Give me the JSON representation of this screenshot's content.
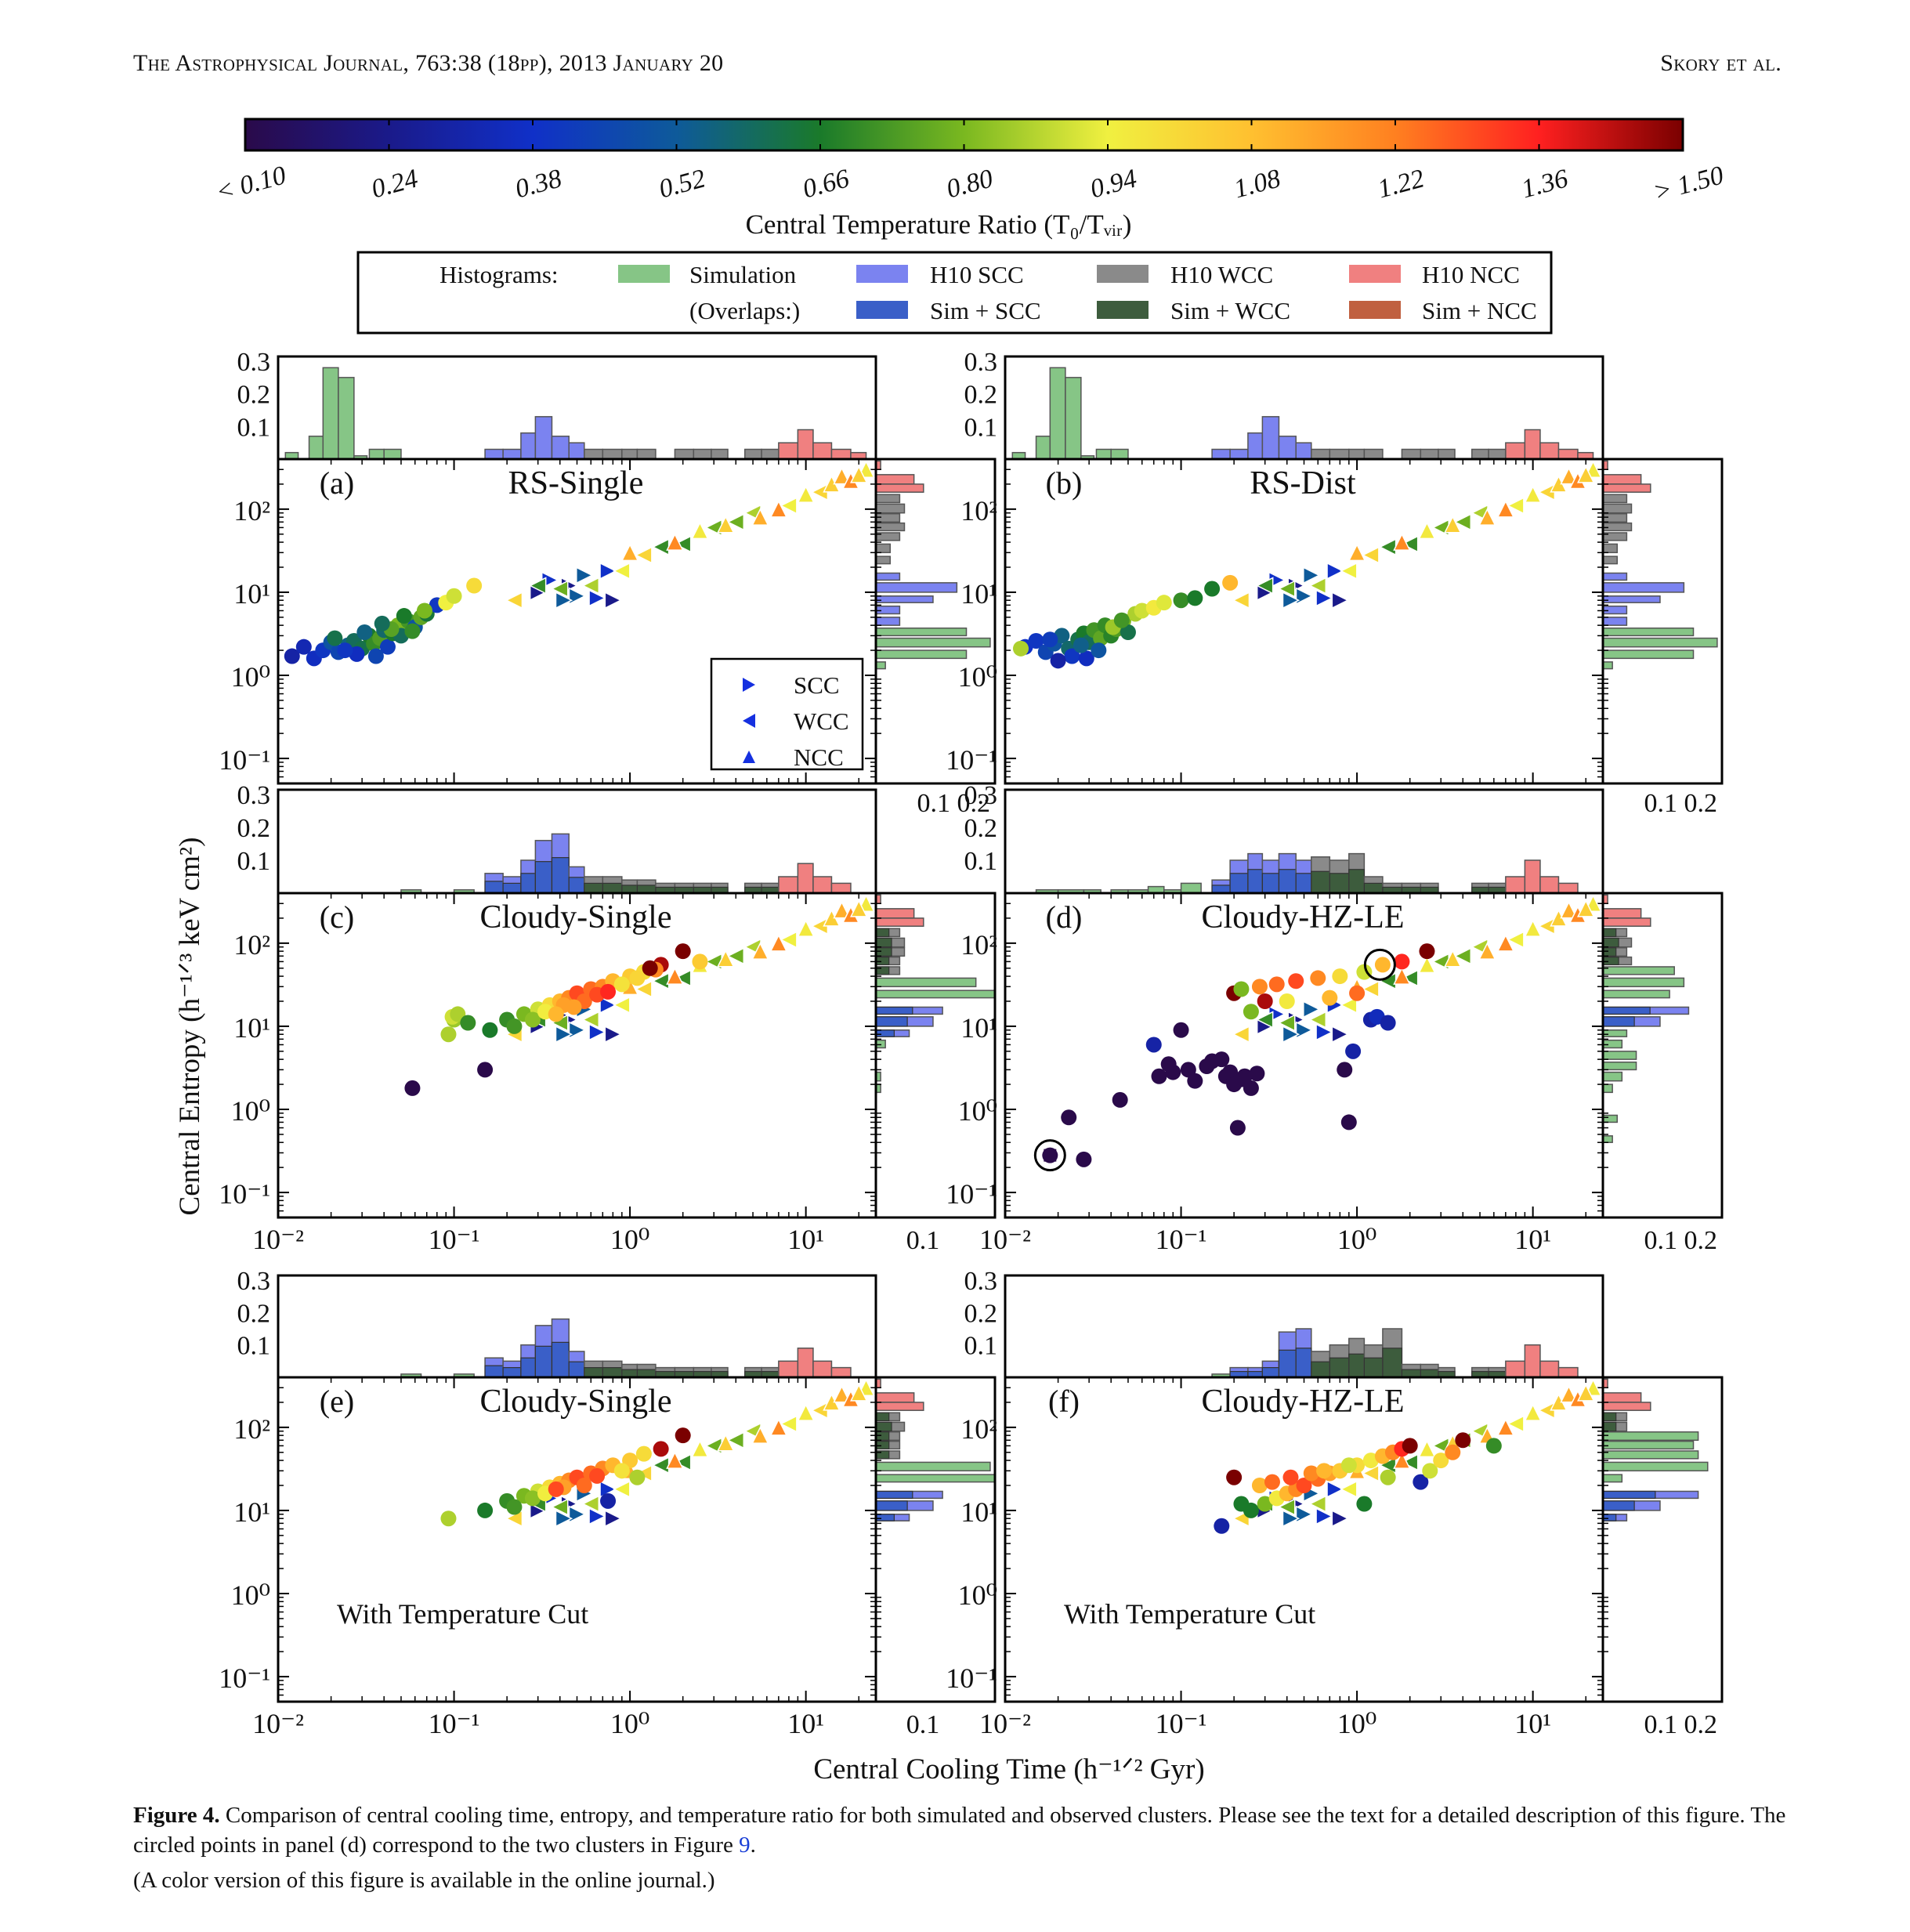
{
  "header": {
    "journal": "The Astrophysical Journal, 763:38 (18pp), 2013 January 20",
    "authors": "Skory et al."
  },
  "colorbar": {
    "ticks": [
      "< 0.10",
      "0.24",
      "0.38",
      "0.52",
      "0.66",
      "0.80",
      "0.94",
      "1.08",
      "1.22",
      "1.36",
      "> 1.50"
    ],
    "label": "Central Temperature Ratio (T₀/Tᵥᵢᵣ)",
    "range": [
      0.1,
      1.5
    ],
    "colormap": [
      "#2a0a4a",
      "#1a1a8a",
      "#1030c8",
      "#0e5a9a",
      "#1a7a2a",
      "#7ab820",
      "#f0f040",
      "#ffc030",
      "#ff8020",
      "#ff2020",
      "#7a0000"
    ]
  },
  "legend": {
    "title": "Histograms:",
    "overlaps_label": "(Overlaps:)",
    "items": [
      {
        "label": "Simulation",
        "color": "#86c586"
      },
      {
        "label": "H10 SCC",
        "color": "#7b83f0"
      },
      {
        "label": "H10 WCC",
        "color": "#8a8a8a"
      },
      {
        "label": "H10 NCC",
        "color": "#f08080"
      },
      {
        "label": "Sim + SCC",
        "color": "#3a5fc8"
      },
      {
        "label": "Sim + WCC",
        "color": "#3d5c3d"
      },
      {
        "label": "Sim + NCC",
        "color": "#c06040"
      }
    ]
  },
  "marker_legend": [
    "SCC",
    "WCC",
    "NCC"
  ],
  "panels": [
    {
      "id": "a",
      "label": "(a)",
      "title": "RS-Single",
      "note": ""
    },
    {
      "id": "b",
      "label": "(b)",
      "title": "RS-Dist",
      "note": ""
    },
    {
      "id": "c",
      "label": "(c)",
      "title": "Cloudy-Single",
      "note": ""
    },
    {
      "id": "d",
      "label": "(d)",
      "title": "Cloudy-HZ-LE",
      "note": ""
    },
    {
      "id": "e",
      "label": "(e)",
      "title": "Cloudy-Single",
      "note": "With Temperature Cut"
    },
    {
      "id": "f",
      "label": "(f)",
      "title": "Cloudy-HZ-LE",
      "note": "With Temperature Cut"
    }
  ],
  "axes": {
    "xlabel": "Central Cooling Time (h⁻¹ᐟ² Gyr)",
    "ylabel": "Central Entropy (h⁻¹ᐟ³ keV cm²)",
    "x_scale": "log",
    "y_scale": "log",
    "xlim": [
      0.01,
      25
    ],
    "ylim": [
      0.05,
      400
    ],
    "x_ticks": [
      "10⁻²",
      "10⁻¹",
      "10⁰",
      "10¹"
    ],
    "y_ticks": [
      "10⁻¹",
      "10⁰",
      "10¹",
      "10²"
    ],
    "top_hist_ticks": [
      "0.3",
      "0.2",
      "0.1"
    ],
    "right_hist_ticks": [
      "0.1",
      "0.2"
    ]
  },
  "chart_data": [
    {
      "type": "scatter",
      "title": "RS-Single",
      "x_scale": "log",
      "y_scale": "log",
      "series": [
        {
          "name": "Simulation",
          "x": [
            0.012,
            0.014,
            0.016,
            0.018,
            0.02,
            0.022,
            0.025,
            0.027,
            0.03,
            0.033,
            0.035,
            0.038,
            0.04,
            0.042,
            0.045,
            0.048,
            0.05,
            0.055,
            0.06,
            0.065,
            0.07,
            0.08,
            0.09,
            0.1,
            0.13,
            0.021,
            0.028,
            0.036,
            0.044,
            0.052,
            0.031,
            0.024,
            0.039,
            0.058,
            0.068
          ],
          "y": [
            1.7,
            2.2,
            1.6,
            2.0,
            2.5,
            1.9,
            2.3,
            2.6,
            2.1,
            3.0,
            2.4,
            2.8,
            3.5,
            2.2,
            3.2,
            4.0,
            3.0,
            4.5,
            3.8,
            5.0,
            5.5,
            7.0,
            7.5,
            9.0,
            12.0,
            2.8,
            1.8,
            1.7,
            3.6,
            5.2,
            3.3,
            2.0,
            4.2,
            3.4,
            6.0
          ],
          "t_ratio": [
            0.3,
            0.33,
            0.36,
            0.4,
            0.5,
            0.45,
            0.55,
            0.6,
            0.62,
            0.66,
            0.7,
            0.74,
            0.58,
            0.42,
            0.66,
            0.8,
            0.6,
            0.72,
            0.5,
            0.76,
            0.64,
            0.4,
            0.94,
            0.9,
            1.0,
            0.62,
            0.36,
            0.45,
            0.75,
            0.66,
            0.55,
            0.4,
            0.6,
            0.7,
            0.8
          ]
        }
      ]
    },
    {
      "type": "scatter",
      "title": "RS-Dist",
      "x_scale": "log",
      "y_scale": "log",
      "series": [
        {
          "name": "Simulation",
          "x": [
            0.013,
            0.015,
            0.017,
            0.019,
            0.021,
            0.023,
            0.026,
            0.028,
            0.03,
            0.032,
            0.035,
            0.037,
            0.04,
            0.043,
            0.047,
            0.05,
            0.055,
            0.06,
            0.07,
            0.08,
            0.1,
            0.12,
            0.15,
            0.19,
            0.024,
            0.029,
            0.034,
            0.041,
            0.046,
            0.02,
            0.018,
            0.027
          ],
          "y": [
            2.2,
            2.6,
            1.9,
            2.4,
            3.0,
            2.1,
            2.7,
            3.2,
            2.5,
            3.5,
            2.8,
            4.0,
            3.0,
            3.6,
            4.5,
            3.3,
            5.5,
            6.0,
            6.5,
            7.5,
            8.0,
            8.5,
            11.0,
            13.0,
            1.7,
            1.6,
            2.0,
            3.8,
            4.6,
            1.5,
            2.7,
            2.3
          ],
          "t_ratio": [
            0.38,
            0.4,
            0.45,
            0.5,
            0.55,
            0.58,
            0.62,
            0.66,
            0.6,
            0.72,
            0.76,
            0.7,
            0.68,
            0.74,
            0.8,
            0.62,
            0.86,
            0.9,
            0.96,
            0.92,
            0.7,
            0.66,
            0.66,
            1.1,
            0.4,
            0.36,
            0.5,
            0.84,
            0.72,
            0.3,
            0.42,
            0.54
          ],
          "extra_point": {
            "x": 0.009,
            "y": 2.1,
            "t_ratio": 0.86
          }
        }
      ]
    },
    {
      "type": "scatter",
      "title": "Cloudy-Single",
      "x_scale": "log",
      "y_scale": "log",
      "series": [
        {
          "name": "Simulation",
          "x": [
            0.058,
            0.093,
            0.1,
            0.098,
            0.105,
            0.12,
            0.15,
            0.16,
            0.2,
            0.25,
            0.3,
            0.35,
            0.4,
            0.45,
            0.5,
            0.6,
            0.7,
            0.8,
            1.0,
            1.2,
            1.5,
            2.0,
            0.22,
            0.28,
            0.33,
            0.42,
            0.55,
            0.65,
            0.9,
            1.1,
            1.4,
            0.38,
            0.48,
            0.75,
            1.3,
            2.5
          ],
          "y": [
            1.8,
            8.0,
            12.0,
            13.0,
            14.0,
            11.0,
            3.0,
            9.0,
            12.0,
            14.0,
            16.0,
            18.0,
            20.0,
            22.0,
            25.0,
            28.0,
            30.0,
            35.0,
            40.0,
            45.0,
            55.0,
            80.0,
            10.0,
            12.0,
            15.0,
            18.0,
            20.0,
            24.0,
            32.0,
            38.0,
            48.0,
            14.0,
            17.0,
            26.0,
            50.0,
            60.0
          ],
          "t_ratio": [
            0.1,
            0.86,
            0.84,
            0.9,
            0.86,
            0.7,
            0.1,
            0.66,
            0.7,
            0.8,
            0.9,
            1.0,
            1.1,
            1.2,
            1.3,
            1.25,
            1.2,
            1.1,
            1.05,
            1.0,
            1.45,
            1.5,
            0.72,
            0.82,
            0.95,
            1.15,
            1.25,
            1.3,
            0.98,
            1.02,
            1.2,
            1.1,
            1.15,
            1.35,
            1.5,
            1.05
          ]
        }
      ]
    },
    {
      "type": "scatter",
      "title": "Cloudy-HZ-LE",
      "x_scale": "log",
      "y_scale": "log",
      "series": [
        {
          "name": "Simulation",
          "x": [
            0.018,
            0.023,
            0.028,
            0.045,
            0.07,
            0.075,
            0.085,
            0.09,
            0.1,
            0.11,
            0.12,
            0.14,
            0.15,
            0.17,
            0.18,
            0.19,
            0.2,
            0.21,
            0.22,
            0.23,
            0.25,
            0.27,
            0.2,
            0.3,
            0.9,
            0.85,
            0.95,
            1.2,
            1.3,
            1.5,
            0.22,
            0.28,
            0.35,
            0.45,
            0.6,
            0.8,
            1.1,
            1.4,
            1.8,
            2.5,
            0.25,
            0.4,
            0.7,
            1.0
          ],
          "y": [
            0.28,
            0.8,
            0.25,
            1.3,
            6.0,
            2.5,
            3.5,
            2.8,
            9.0,
            3.0,
            2.2,
            3.3,
            3.8,
            4.0,
            2.5,
            2.8,
            2.0,
            0.6,
            2.3,
            2.5,
            1.8,
            2.7,
            25.0,
            20.0,
            0.7,
            3.0,
            5.0,
            12.0,
            13.0,
            11.0,
            28.0,
            30.0,
            32.0,
            35.0,
            38.0,
            40.0,
            45.0,
            55.0,
            60.0,
            80.0,
            15.0,
            20.0,
            22.0,
            25.0
          ],
          "t_ratio": [
            0.1,
            0.1,
            0.1,
            0.1,
            0.3,
            0.1,
            0.1,
            0.1,
            0.1,
            0.1,
            0.1,
            0.1,
            0.1,
            0.1,
            0.1,
            0.1,
            0.1,
            0.1,
            0.1,
            0.1,
            0.1,
            0.1,
            1.5,
            1.45,
            0.1,
            0.1,
            0.3,
            0.3,
            0.35,
            0.3,
            0.8,
            1.2,
            1.25,
            1.3,
            1.2,
            1.0,
            0.9,
            1.1,
            1.35,
            1.5,
            0.8,
            0.96,
            1.1,
            1.25
          ]
        }
      ]
    },
    {
      "type": "scatter",
      "title": "Cloudy-Single",
      "x_scale": "log",
      "y_scale": "log",
      "series": [
        {
          "name": "Simulation",
          "x": [
            0.093,
            0.15,
            0.2,
            0.25,
            0.3,
            0.35,
            0.4,
            0.45,
            0.5,
            0.6,
            0.7,
            0.8,
            1.0,
            1.2,
            1.5,
            2.0,
            0.22,
            0.28,
            0.33,
            0.42,
            0.55,
            0.65,
            0.9,
            1.1,
            0.75,
            0.38
          ],
          "y": [
            8.0,
            10.0,
            13.0,
            15.0,
            17.0,
            19.0,
            21.0,
            23.0,
            25.0,
            28.0,
            32.0,
            35.0,
            40.0,
            48.0,
            55.0,
            80.0,
            11.0,
            14.0,
            16.0,
            19.0,
            20.0,
            26.0,
            30.0,
            25.0,
            13.0,
            18.0
          ],
          "t_ratio": [
            0.86,
            0.66,
            0.7,
            0.8,
            0.9,
            1.0,
            1.1,
            1.2,
            1.3,
            1.25,
            1.2,
            1.1,
            1.05,
            1.0,
            1.45,
            1.5,
            0.72,
            0.82,
            0.95,
            1.15,
            1.25,
            1.3,
            0.98,
            0.86,
            0.3,
            1.3
          ]
        }
      ]
    },
    {
      "type": "scatter",
      "title": "Cloudy-HZ-LE",
      "x_scale": "log",
      "y_scale": "log",
      "series": [
        {
          "name": "Simulation",
          "x": [
            0.17,
            0.2,
            0.25,
            0.3,
            0.35,
            0.4,
            0.45,
            0.5,
            0.6,
            0.7,
            0.8,
            1.0,
            1.2,
            1.4,
            1.6,
            1.8,
            2.0,
            2.3,
            2.6,
            3.0,
            3.5,
            4.0,
            6.0,
            0.22,
            0.28,
            0.33,
            0.42,
            0.55,
            0.65,
            0.9,
            1.1,
            1.5
          ],
          "y": [
            6.5,
            25.0,
            10.0,
            12.0,
            14.0,
            16.0,
            18.0,
            20.0,
            24.0,
            28.0,
            30.0,
            35.0,
            40.0,
            45.0,
            50.0,
            55.0,
            60.0,
            22.0,
            30.0,
            40.0,
            50.0,
            70.0,
            60.0,
            12.0,
            20.0,
            22.0,
            25.0,
            28.0,
            30.0,
            35.0,
            12.0,
            25.0
          ],
          "t_ratio": [
            0.3,
            1.5,
            0.66,
            0.8,
            0.96,
            1.1,
            1.2,
            1.3,
            1.25,
            1.15,
            1.05,
            1.0,
            0.96,
            1.1,
            1.2,
            1.35,
            1.5,
            0.3,
            0.9,
            1.0,
            1.2,
            1.5,
            0.7,
            0.66,
            1.1,
            1.25,
            1.3,
            1.2,
            1.1,
            0.9,
            0.66,
            0.86
          ]
        }
      ]
    }
  ],
  "caption": {
    "label": "Figure 4.",
    "text": " Comparison of central cooling time, entropy, and temperature ratio for both simulated and observed clusters. Please see the text for a detailed description of this figure. The circled points in panel (d) correspond to the two clusters in Figure ",
    "ref": "9",
    "end": ".",
    "color_note": "(A color version of this figure is available in the online journal.)"
  }
}
